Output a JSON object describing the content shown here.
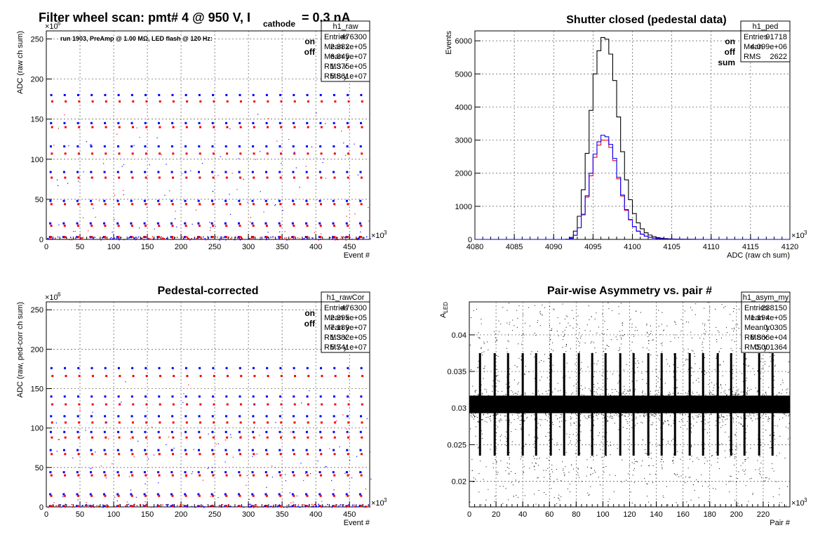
{
  "page_title_main": "Filter wheel scan: pmt#   4 @   950 V, I",
  "page_title_sub": "cathode",
  "page_title_tail": "= 0.3 nA",
  "colors": {
    "on": "#0000ff",
    "off": "#ff0000",
    "sum": "#000000",
    "frame": "#000000",
    "grid": "#555555"
  },
  "chart_data": [
    {
      "id": "raw",
      "type": "scatter",
      "title": "",
      "annotation": "run 1903, PreAmp @ 1.00 MΩ, LED flash @  120 Hz:",
      "xlabel": "Event #",
      "ylabel": "ADC (raw ch sum)",
      "xlim": [
        0,
        480000
      ],
      "ylim": [
        0,
        260000000
      ],
      "xticks": [
        0,
        50,
        100,
        150,
        200,
        250,
        300,
        350,
        400,
        450
      ],
      "yticks": [
        0,
        50,
        100,
        150,
        200,
        250
      ],
      "x_exponent": "×10",
      "x_exponent_power": "3",
      "y_exponent": "×10",
      "y_exponent_power": "6",
      "grid": true,
      "legend": {
        "placement": "top-right",
        "entries": [
          "on",
          "off"
        ]
      },
      "stats": {
        "name": "h1_raw",
        "rows": [
          [
            "Entries",
            "476300"
          ],
          [
            "Mean x",
            "2.382e+05"
          ],
          [
            "Mean y",
            "6.845e+07"
          ],
          [
            "RMS x",
            "1.375e+05"
          ],
          [
            "RMS y",
            "5.861e+07"
          ]
        ]
      },
      "series": [
        {
          "name": "on",
          "levels": [
            3000000,
            20000000,
            48000000,
            84000000,
            116000000,
            145000000,
            180000000
          ],
          "step_period": 20000
        },
        {
          "name": "off",
          "levels": [
            3000000,
            17000000,
            44000000,
            77000000,
            107000000,
            140000000,
            172000000
          ],
          "step_period": 20000
        }
      ]
    },
    {
      "id": "ped",
      "type": "histogram",
      "title": "Shutter closed (pedestal data)",
      "xlabel": "ADC (raw ch sum)",
      "ylabel": "Events",
      "xlim": [
        4080000,
        4120000
      ],
      "ylim": [
        0,
        6300
      ],
      "xticks": [
        4080,
        4085,
        4090,
        4095,
        4100,
        4105,
        4110,
        4115,
        4120
      ],
      "yticks": [
        0,
        1000,
        2000,
        3000,
        4000,
        5000,
        6000
      ],
      "x_exponent": "×10",
      "x_exponent_power": "3",
      "grid": true,
      "legend": {
        "placement": "top-right",
        "entries": [
          "on",
          "off",
          "sum"
        ]
      },
      "stats": {
        "name": "h1_ped",
        "rows": [
          [
            "Entries",
            "91718"
          ],
          [
            "Mean",
            "4.099e+06"
          ],
          [
            "RMS",
            "2622"
          ]
        ]
      },
      "bins_x_start": 4090000,
      "bin_width": 500,
      "series": [
        {
          "name": "sum",
          "values": [
            0,
            0,
            0,
            5,
            60,
            250,
            700,
            1500,
            2600,
            3900,
            5000,
            5700,
            6100,
            6050,
            5600,
            4800,
            3700,
            2650,
            1800,
            1200,
            780,
            500,
            320,
            200,
            130,
            85,
            55,
            35,
            25,
            18,
            12,
            9,
            6,
            4,
            3,
            2,
            1,
            1,
            0,
            0
          ]
        },
        {
          "name": "on",
          "values": [
            0,
            0,
            0,
            2,
            30,
            125,
            350,
            760,
            1320,
            2000,
            2580,
            2950,
            3150,
            3100,
            2870,
            2450,
            1880,
            1340,
            900,
            600,
            390,
            250,
            160,
            100,
            65,
            42,
            28,
            18,
            12,
            9,
            6,
            4,
            3,
            2,
            1,
            1,
            0,
            0,
            0,
            0
          ]
        },
        {
          "name": "off",
          "values": [
            0,
            0,
            0,
            2,
            30,
            125,
            350,
            740,
            1280,
            1920,
            2480,
            2850,
            3000,
            3000,
            2780,
            2380,
            1830,
            1310,
            880,
            590,
            380,
            245,
            155,
            98,
            63,
            41,
            27,
            17,
            12,
            9,
            6,
            4,
            3,
            2,
            1,
            1,
            0,
            0,
            0,
            0
          ]
        }
      ]
    },
    {
      "id": "rawcor",
      "type": "scatter",
      "title": "Pedestal-corrected",
      "xlabel": "Event #",
      "ylabel": "ADC (raw, ped-corr ch sum)",
      "xlim": [
        0,
        480000
      ],
      "ylim": [
        0,
        260000000
      ],
      "xticks": [
        0,
        50,
        100,
        150,
        200,
        250,
        300,
        350,
        400,
        450
      ],
      "yticks": [
        0,
        50,
        100,
        150,
        200,
        250
      ],
      "x_exponent": "×10",
      "x_exponent_power": "3",
      "y_exponent": "×10",
      "y_exponent_power": "6",
      "grid": true,
      "legend": {
        "placement": "top-right",
        "entries": [
          "on",
          "off"
        ]
      },
      "stats": {
        "name": "h1_rawCor",
        "rows": [
          [
            "Entries",
            "476300"
          ],
          [
            "Mean x",
            "2.395e+05"
          ],
          [
            "Mean y",
            "7.189e+07"
          ],
          [
            "RMS x",
            "1.382e+05"
          ],
          [
            "RMS y",
            "5.741e+07"
          ]
        ]
      },
      "series": [
        {
          "name": "on",
          "levels": [
            1000000,
            16000000,
            44000000,
            72000000,
            95000000,
            115000000,
            140000000,
            176000000
          ],
          "step_period": 20000
        },
        {
          "name": "off",
          "levels": [
            1000000,
            14000000,
            40000000,
            67000000,
            88000000,
            107000000,
            130000000,
            166000000
          ],
          "step_period": 20000
        }
      ]
    },
    {
      "id": "asym",
      "type": "scatter",
      "title": "Pair-wise Asymmetry vs. pair #",
      "xlabel": "Pair #",
      "ylabel": "A",
      "ylabel_sub": "LED",
      "xlim": [
        0,
        240000
      ],
      "ylim": [
        0.0165,
        0.0445
      ],
      "xticks": [
        0,
        20,
        40,
        60,
        80,
        100,
        120,
        140,
        160,
        180,
        200,
        220
      ],
      "yticks": [
        0.02,
        0.025,
        0.03,
        0.035,
        0.04
      ],
      "ytick_labels": [
        "0.02",
        "0.025",
        "0.03",
        "0.035",
        "0.04"
      ],
      "x_exponent": "×10",
      "x_exponent_power": "3",
      "grid": true,
      "stats": {
        "name": "h1_asym_my",
        "rows": [
          [
            "Entries",
            "238150"
          ],
          [
            "Mean x",
            "1.194e+05"
          ],
          [
            "Mean y",
            "0.0305"
          ],
          [
            "RMS x",
            "6.866e+04"
          ],
          [
            "RMS y",
            "0.001364"
          ]
        ]
      },
      "series": [
        {
          "name": "asymmetry",
          "center": 0.0305,
          "band_halfwidth": 0.0012,
          "spike_positions": [
            8000,
            19000,
            29000,
            40000,
            50000,
            61000,
            71000,
            82000,
            92000,
            102000,
            113000,
            123000,
            134000,
            144000,
            154000,
            165000,
            175000,
            186000,
            196000,
            206000,
            217000,
            227000
          ]
        }
      ]
    }
  ]
}
